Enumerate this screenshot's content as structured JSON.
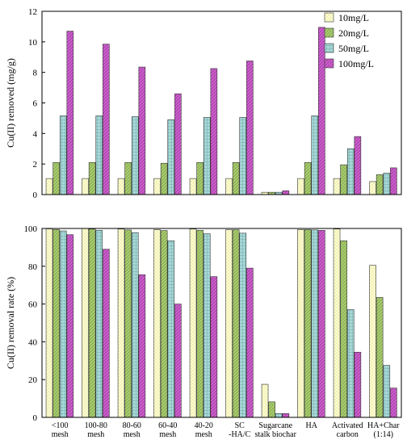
{
  "series_styles": [
    {
      "fill": "#ffffcc",
      "pattern": "dots",
      "pattern_color": "#b4b08a"
    },
    {
      "fill": "#a8cc70",
      "pattern": "diag",
      "pattern_color": "#6e9038"
    },
    {
      "fill": "#a6d8d8",
      "pattern": "grid",
      "pattern_color": "#78aaaa"
    },
    {
      "fill": "#cc5fcc",
      "pattern": "diag",
      "pattern_color": "#8a2a8a"
    }
  ],
  "chart_data": [
    {
      "type": "bar",
      "ylabel": "Cu(II) removed (mg/g)",
      "ylim": [
        0,
        12
      ],
      "yticks": [
        0,
        2,
        4,
        6,
        8,
        10,
        12
      ],
      "legend_position": "top-right",
      "categories": [
        "<100 mesh",
        "100-80 mesh",
        "80-60 mesh",
        "60-40 mesh",
        "40-20 mesh",
        "SC -HA/C",
        "Sugarcane stalk biochar",
        "HA",
        "Activated carbon",
        "HA+Char (1:14)"
      ],
      "series": [
        {
          "name": "10mg/L",
          "values": [
            1.05,
            1.05,
            1.05,
            1.05,
            1.05,
            1.05,
            0.15,
            1.05,
            1.05,
            0.85
          ]
        },
        {
          "name": "20mg/L",
          "values": [
            2.1,
            2.1,
            2.1,
            2.05,
            2.1,
            2.1,
            0.15,
            2.1,
            1.95,
            1.3
          ]
        },
        {
          "name": "50mg/L",
          "values": [
            5.15,
            5.15,
            5.1,
            4.9,
            5.05,
            5.05,
            0.15,
            5.15,
            3.0,
            1.4
          ]
        },
        {
          "name": "100mg/L",
          "values": [
            10.7,
            9.85,
            8.35,
            6.6,
            8.25,
            8.75,
            0.25,
            10.95,
            3.8,
            1.75
          ]
        }
      ]
    },
    {
      "type": "bar",
      "ylabel": "Cu(II) removal rate (%)",
      "ylim": [
        0,
        100
      ],
      "yticks": [
        0,
        20,
        40,
        60,
        80,
        100
      ],
      "categories": [
        "<100 mesh",
        "100-80 mesh",
        "80-60 mesh",
        "60-40 mesh",
        "40-20 mesh",
        "SC -HA/C",
        "Sugarcane stalk biochar",
        "HA",
        "Activated carbon",
        "HA+Char (1:14)"
      ],
      "category_label_lines": [
        [
          "<100",
          "mesh"
        ],
        [
          "100-80",
          "mesh"
        ],
        [
          "80-60",
          "mesh"
        ],
        [
          "60-40",
          "mesh"
        ],
        [
          "40-20",
          "mesh"
        ],
        [
          "SC",
          "-HA/C"
        ],
        [
          "Sugarcane",
          "stalk biochar"
        ],
        [
          "HA"
        ],
        [
          "Activated",
          "carbon"
        ],
        [
          "HA+Char",
          "(1:14)"
        ]
      ],
      "series": [
        {
          "name": "10mg/L",
          "values": [
            99.8,
            100,
            99.7,
            99.4,
            99.7,
            99.3,
            17.5,
            99.4,
            99.7,
            80.5
          ]
        },
        {
          "name": "20mg/L",
          "values": [
            99.4,
            99.7,
            99.2,
            98.9,
            99.0,
            99.3,
            8.2,
            99.4,
            93.5,
            63.5
          ]
        },
        {
          "name": "50mg/L",
          "values": [
            98.7,
            99.0,
            97.8,
            93.5,
            97.2,
            97.5,
            2.0,
            99.2,
            57.0,
            27.5
          ]
        },
        {
          "name": "100mg/L",
          "values": [
            96.7,
            89.0,
            75.5,
            60.0,
            74.5,
            79.0,
            2.0,
            99.0,
            34.5,
            15.5
          ]
        }
      ]
    }
  ]
}
